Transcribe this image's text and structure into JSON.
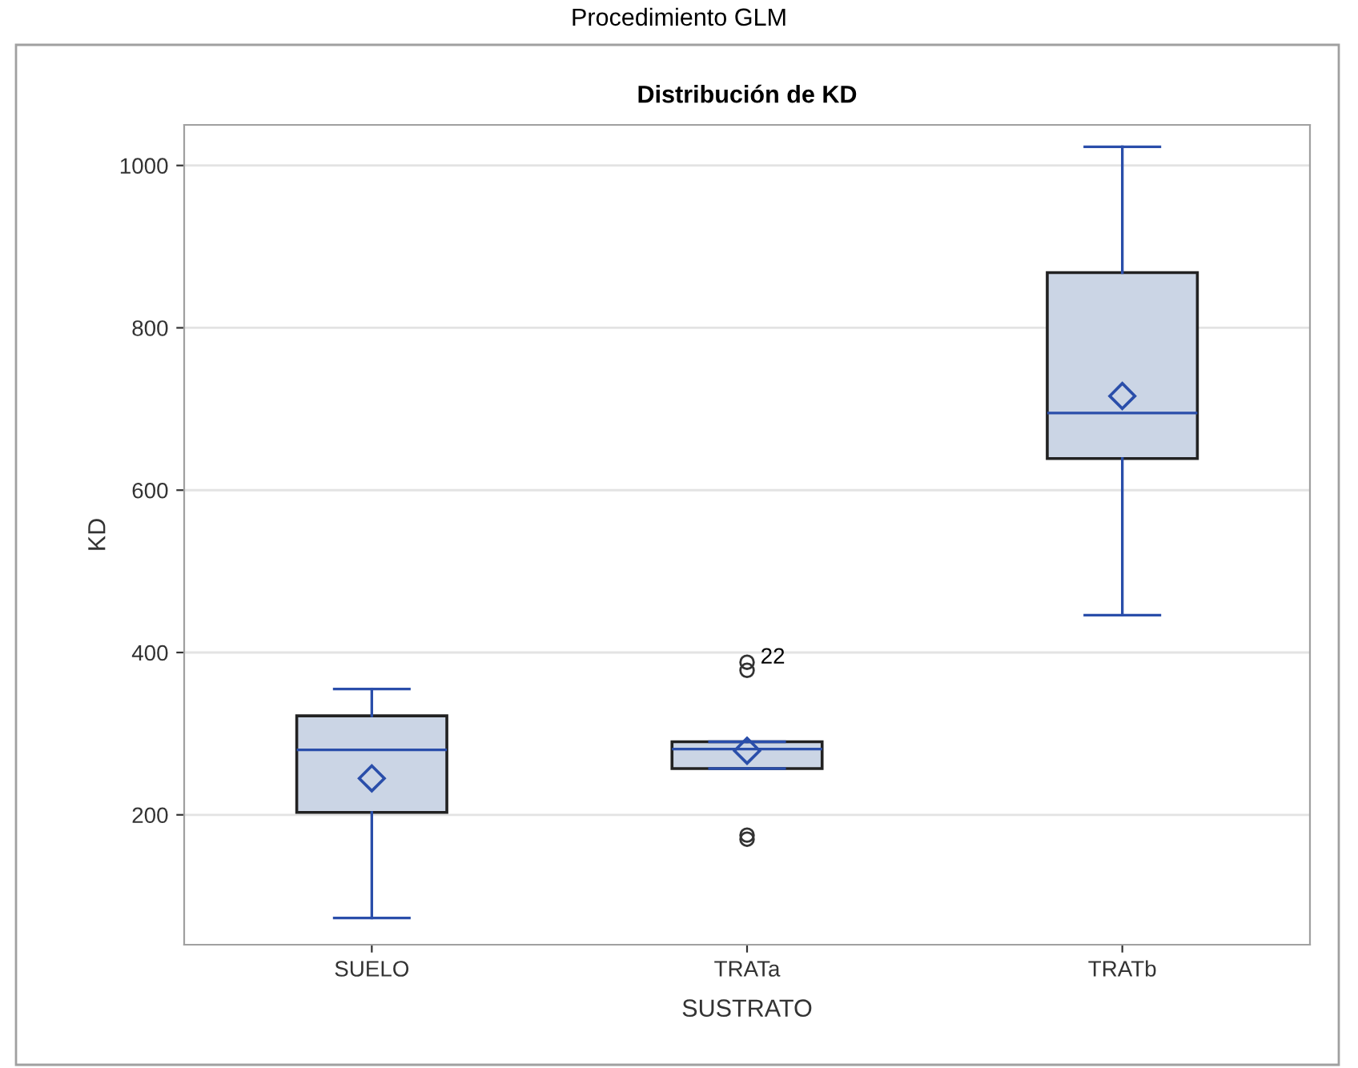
{
  "chart_data": {
    "type": "box",
    "title": "Distribución de KD",
    "subtitle": "Procedimiento GLM",
    "xlabel": "SUSTRATO",
    "ylabel": "KD",
    "categories": [
      "SUELO",
      "TRATa",
      "TRATb"
    ],
    "boxes": [
      {
        "low": 73,
        "q1": 203,
        "median": 280,
        "q3": 322,
        "high": 355,
        "mean": 245
      },
      {
        "low": 257,
        "q1": 257,
        "median": 281,
        "q3": 290,
        "high": 290,
        "mean": 279,
        "outliers": [
          388,
          378,
          175,
          170
        ]
      },
      {
        "low": 446,
        "q1": 639,
        "median": 695,
        "q3": 868,
        "high": 1023,
        "mean": 716
      }
    ],
    "color": "#cbd5e5",
    "annotations": [
      "22"
    ],
    "ylim": [
      40,
      1050
    ],
    "yticks": [
      200,
      400,
      600,
      800,
      1000
    ],
    "grid": "y",
    "legend": false
  }
}
